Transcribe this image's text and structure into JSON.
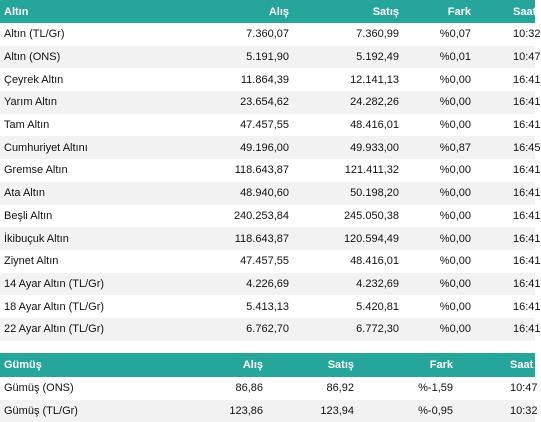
{
  "gold": {
    "headers": {
      "name": "Altın",
      "alis": "Alış",
      "satis": "Satış",
      "fark": "Fark",
      "saat": "Saat"
    },
    "rows": [
      {
        "name": "Altın (TL/Gr)",
        "alis": "7.360,07",
        "satis": "7.360,99",
        "fark": "%0,07",
        "saat": "10:32"
      },
      {
        "name": "Altın (ONS)",
        "alis": "5.191,90",
        "satis": "5.192,49",
        "fark": "%0,01",
        "saat": "10:47"
      },
      {
        "name": "Çeyrek Altın",
        "alis": "11.864,39",
        "satis": "12.141,13",
        "fark": "%0,00",
        "saat": "16:41"
      },
      {
        "name": "Yarım Altın",
        "alis": "23.654,62",
        "satis": "24.282,26",
        "fark": "%0,00",
        "saat": "16:41"
      },
      {
        "name": "Tam Altın",
        "alis": "47.457,55",
        "satis": "48.416,01",
        "fark": "%0,00",
        "saat": "16:41"
      },
      {
        "name": "Cumhuriyet Altını",
        "alis": "49.196,00",
        "satis": "49.933,00",
        "fark": "%0,87",
        "saat": "16:45"
      },
      {
        "name": "Gremse Altın",
        "alis": "118.643,87",
        "satis": "121.411,32",
        "fark": "%0,00",
        "saat": "16:41"
      },
      {
        "name": "Ata Altın",
        "alis": "48.940,60",
        "satis": "50.198,20",
        "fark": "%0,00",
        "saat": "16:41"
      },
      {
        "name": "Beşli Altın",
        "alis": "240.253,84",
        "satis": "245.050,38",
        "fark": "%0,00",
        "saat": "16:41"
      },
      {
        "name": "İkibuçuk Altın",
        "alis": "118.643,87",
        "satis": "120.594,49",
        "fark": "%0,00",
        "saat": "16:41"
      },
      {
        "name": "Ziynet Altın",
        "alis": "47.457,55",
        "satis": "48.416,01",
        "fark": "%0,00",
        "saat": "16:41"
      },
      {
        "name": "14 Ayar Altın (TL/Gr)",
        "alis": "4.226,69",
        "satis": "4.232,69",
        "fark": "%0,00",
        "saat": "16:41"
      },
      {
        "name": "18 Ayar Altın (TL/Gr)",
        "alis": "5.413,13",
        "satis": "5.420,81",
        "fark": "%0,00",
        "saat": "16:41"
      },
      {
        "name": "22 Ayar Altın (TL/Gr)",
        "alis": "6.762,70",
        "satis": "6.772,30",
        "fark": "%0,00",
        "saat": "16:41"
      }
    ]
  },
  "silver": {
    "headers": {
      "name": "Gümüş",
      "alis": "Alış",
      "satis": "Satış",
      "fark": "Fark",
      "saat": "Saat"
    },
    "rows": [
      {
        "name": "Gümüş (ONS)",
        "alis": "86,86",
        "satis": "86,92",
        "fark": "%-1,59",
        "saat": "10:47"
      },
      {
        "name": "Gümüş (TL/Gr)",
        "alis": "123,86",
        "satis": "123,94",
        "fark": "%-0,95",
        "saat": "10:32"
      }
    ]
  }
}
